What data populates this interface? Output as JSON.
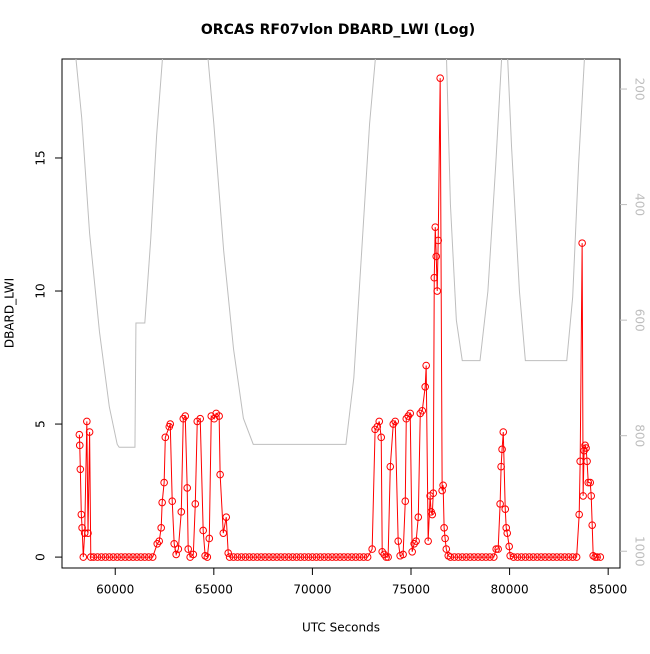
{
  "chart_data": {
    "type": "line",
    "title": "ORCAS RF07vlon DBARD_LWI (Log)",
    "x_label": "UTC Seconds",
    "y_label": "DBARD_LWI",
    "xlim": [
      57300,
      85600
    ],
    "ylim": [
      -0.41,
      18.72
    ],
    "y2lim": [
      1029,
      148
    ],
    "xticks": [
      60000,
      65000,
      70000,
      75000,
      80000,
      85000
    ],
    "yticks": [
      0,
      5,
      10,
      15
    ],
    "y2ticks": [
      200,
      400,
      600,
      800,
      1000
    ],
    "y2tick_color": "#bebebe",
    "series": [
      {
        "color": "#ff0000",
        "markers": true,
        "x": [
          58180,
          58200,
          58230,
          58280,
          58320,
          58380,
          58450,
          58560,
          58620,
          58700,
          58760,
          58900,
          59100,
          59300,
          59500,
          59700,
          59900,
          60100,
          60300,
          60500,
          60700,
          60900,
          61100,
          61300,
          61500,
          61700,
          61900,
          62130,
          62230,
          62330,
          62380,
          62480,
          62540,
          62740,
          62790,
          62890,
          62990,
          63090,
          63200,
          63350,
          63450,
          63550,
          63650,
          63700,
          63800,
          63960,
          64060,
          64160,
          64310,
          64460,
          64560,
          64670,
          64770,
          64870,
          65020,
          65120,
          65270,
          65320,
          65480,
          65630,
          65730,
          65800,
          66000,
          66200,
          66400,
          66600,
          66800,
          67000,
          67200,
          67400,
          67600,
          67800,
          68000,
          68200,
          68400,
          68600,
          68800,
          69000,
          69200,
          69400,
          69600,
          69800,
          70000,
          70200,
          70400,
          70600,
          70800,
          71000,
          71200,
          71400,
          71600,
          71800,
          72000,
          72200,
          72400,
          72600,
          72800,
          73030,
          73180,
          73290,
          73390,
          73490,
          73540,
          73640,
          73740,
          73840,
          73950,
          74100,
          74200,
          74350,
          74450,
          74600,
          74710,
          74760,
          74860,
          74960,
          75060,
          75160,
          75260,
          75370,
          75470,
          75570,
          75720,
          75770,
          75870,
          75970,
          76020,
          76080,
          76130,
          76180,
          76230,
          76280,
          76330,
          76380,
          76480,
          76580,
          76630,
          76680,
          76730,
          76790,
          76890,
          77000,
          77200,
          77400,
          77600,
          77800,
          78000,
          78200,
          78400,
          78600,
          78800,
          79000,
          79200,
          79320,
          79420,
          79520,
          79570,
          79620,
          79680,
          79780,
          79830,
          79880,
          79980,
          80030,
          80200,
          80400,
          80600,
          80800,
          81000,
          81200,
          81400,
          81600,
          81800,
          82000,
          82200,
          82400,
          82600,
          82800,
          83000,
          83200,
          83400,
          83530,
          83580,
          83680,
          83730,
          83780,
          83830,
          83880,
          83930,
          83990,
          84090,
          84140,
          84190,
          84240,
          84340,
          84440,
          84600
        ],
        "values": [
          4.6,
          4.2,
          3.3,
          1.6,
          1.1,
          0,
          0.9,
          5.1,
          0.9,
          4.7,
          0,
          0,
          0,
          0,
          0,
          0,
          0,
          0,
          0,
          0,
          0,
          0,
          0,
          0,
          0,
          0,
          0,
          0.5,
          0.6,
          1.1,
          2.05,
          2.8,
          4.5,
          4.9,
          5.0,
          2.1,
          0.5,
          0.1,
          0.3,
          1.7,
          5.2,
          5.3,
          2.6,
          0.3,
          0,
          0.1,
          2.0,
          5.1,
          5.2,
          1.0,
          0.05,
          0,
          0.7,
          5.3,
          5.2,
          5.4,
          5.3,
          3.1,
          0.9,
          1.5,
          0.15,
          0,
          0,
          0,
          0,
          0,
          0,
          0,
          0,
          0,
          0,
          0,
          0,
          0,
          0,
          0,
          0,
          0,
          0,
          0,
          0,
          0,
          0,
          0,
          0,
          0,
          0,
          0,
          0,
          0,
          0,
          0,
          0,
          0,
          0,
          0,
          0,
          0.3,
          4.8,
          4.9,
          5.1,
          4.5,
          0.2,
          0.1,
          0,
          0,
          3.4,
          5.0,
          5.1,
          0.6,
          0.05,
          0.1,
          2.1,
          5.2,
          5.3,
          5.4,
          0.2,
          0.5,
          0.6,
          1.5,
          5.4,
          5.5,
          6.4,
          7.2,
          0.6,
          2.3,
          1.7,
          1.6,
          2.4,
          10.5,
          12.4,
          11.3,
          10.0,
          11.9,
          18.0,
          2.5,
          2.7,
          1.1,
          0.7,
          0.3,
          0.05,
          0,
          0,
          0,
          0,
          0,
          0,
          0,
          0,
          0,
          0,
          0,
          0,
          0.3,
          0.3,
          2.0,
          3.4,
          4.05,
          4.7,
          1.8,
          1.1,
          0.9,
          0.4,
          0.05,
          0,
          0,
          0,
          0,
          0,
          0,
          0,
          0,
          0,
          0,
          0,
          0,
          0,
          0,
          0,
          0,
          0,
          1.6,
          3.6,
          11.8,
          2.3,
          4.0,
          4.2,
          4.1,
          3.6,
          2.8,
          2.8,
          2.3,
          1.2,
          0.05,
          0,
          0,
          0
        ]
      },
      {
        "color": "#bebebe",
        "axis": "y2",
        "x": [
          58000,
          58300,
          58700,
          59200,
          59700,
          60100,
          60200,
          61000,
          61050,
          61500,
          61800,
          62100,
          62400,
          64700,
          65000,
          65500,
          66000,
          66500,
          67000,
          71700,
          72100,
          72500,
          72900,
          73200,
          76800,
          77000,
          77300,
          77600,
          78500,
          78900,
          79300,
          79600,
          79900,
          80100,
          80500,
          80800,
          82900,
          83200,
          83500,
          83800,
          85000
        ],
        "values": [
          145,
          250,
          450,
          620,
          750,
          815,
          820,
          820,
          605,
          605,
          460,
          280,
          145,
          145,
          260,
          480,
          650,
          770,
          815,
          815,
          700,
          480,
          260,
          145,
          145,
          400,
          600,
          670,
          670,
          550,
          330,
          145,
          145,
          300,
          550,
          670,
          670,
          560,
          330,
          145,
          145
        ]
      }
    ]
  }
}
